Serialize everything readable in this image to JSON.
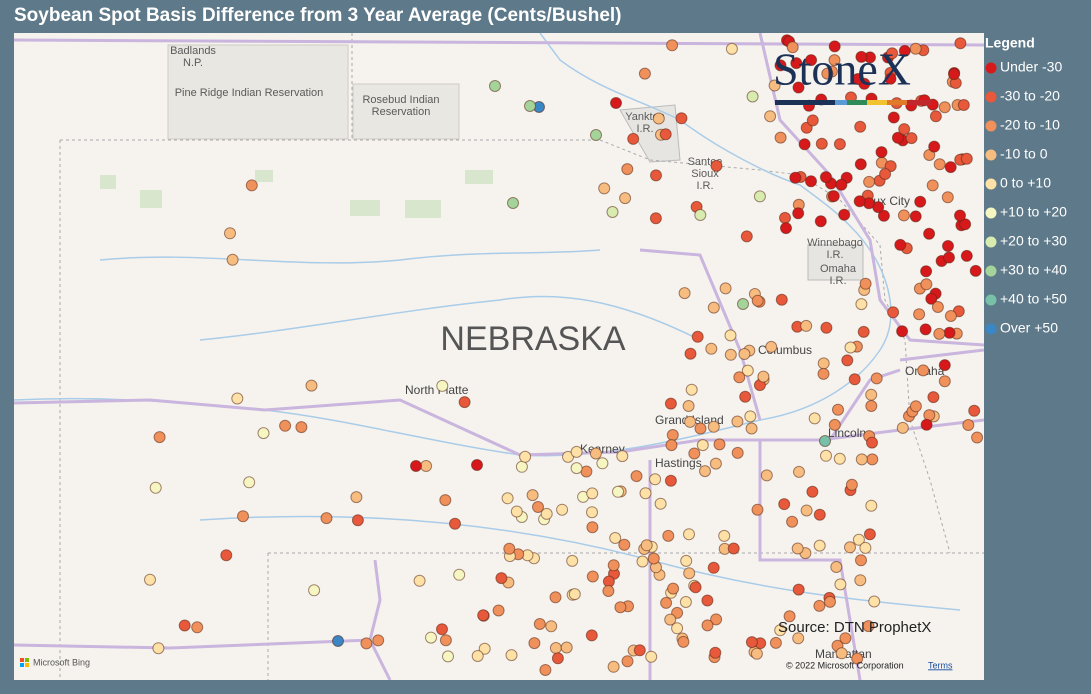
{
  "title": "Soybean Spot Basis Difference from 3 Year Average (Cents/Bushel)",
  "legend": {
    "title": "Legend",
    "items": [
      {
        "label": "Under -30",
        "color": "#d7191c"
      },
      {
        "label": "-30 to -20",
        "color": "#e8583b"
      },
      {
        "label": "-20 to -10",
        "color": "#f0915b"
      },
      {
        "label": "-10 to 0",
        "color": "#f7bd80"
      },
      {
        "label": "0 to +10",
        "color": "#fde1a6"
      },
      {
        "label": "+10 to +20",
        "color": "#f6f6c2"
      },
      {
        "label": "+20 to +30",
        "color": "#d8ecb0"
      },
      {
        "label": "+30 to +40",
        "color": "#a5d49a"
      },
      {
        "label": "+40 to +50",
        "color": "#78c1a8"
      },
      {
        "label": "Over +50",
        "color": "#3b86c4"
      }
    ]
  },
  "places": [
    "Badlands",
    "N.P.",
    "Pine Ridge Indian Reservation",
    "Rosebud Indian",
    "Reservation",
    "Yankton",
    "I.R.",
    "Santee",
    "Sioux",
    "I.R.",
    "Sioux City",
    "Winnebago",
    "I.R.",
    "Omaha",
    "I.R.",
    "NEBRASKA",
    "Columbus",
    "Omaha",
    "North Platte",
    "Grand Island",
    "Lincoln",
    "Kearney",
    "Hastings",
    "Manhattan"
  ],
  "logo": "StoneX",
  "source": "Source: DTN ProphetX",
  "bing": "Microsoft Bing",
  "copyright": "© 2022 Microsoft Corporation",
  "terms": "Terms"
}
